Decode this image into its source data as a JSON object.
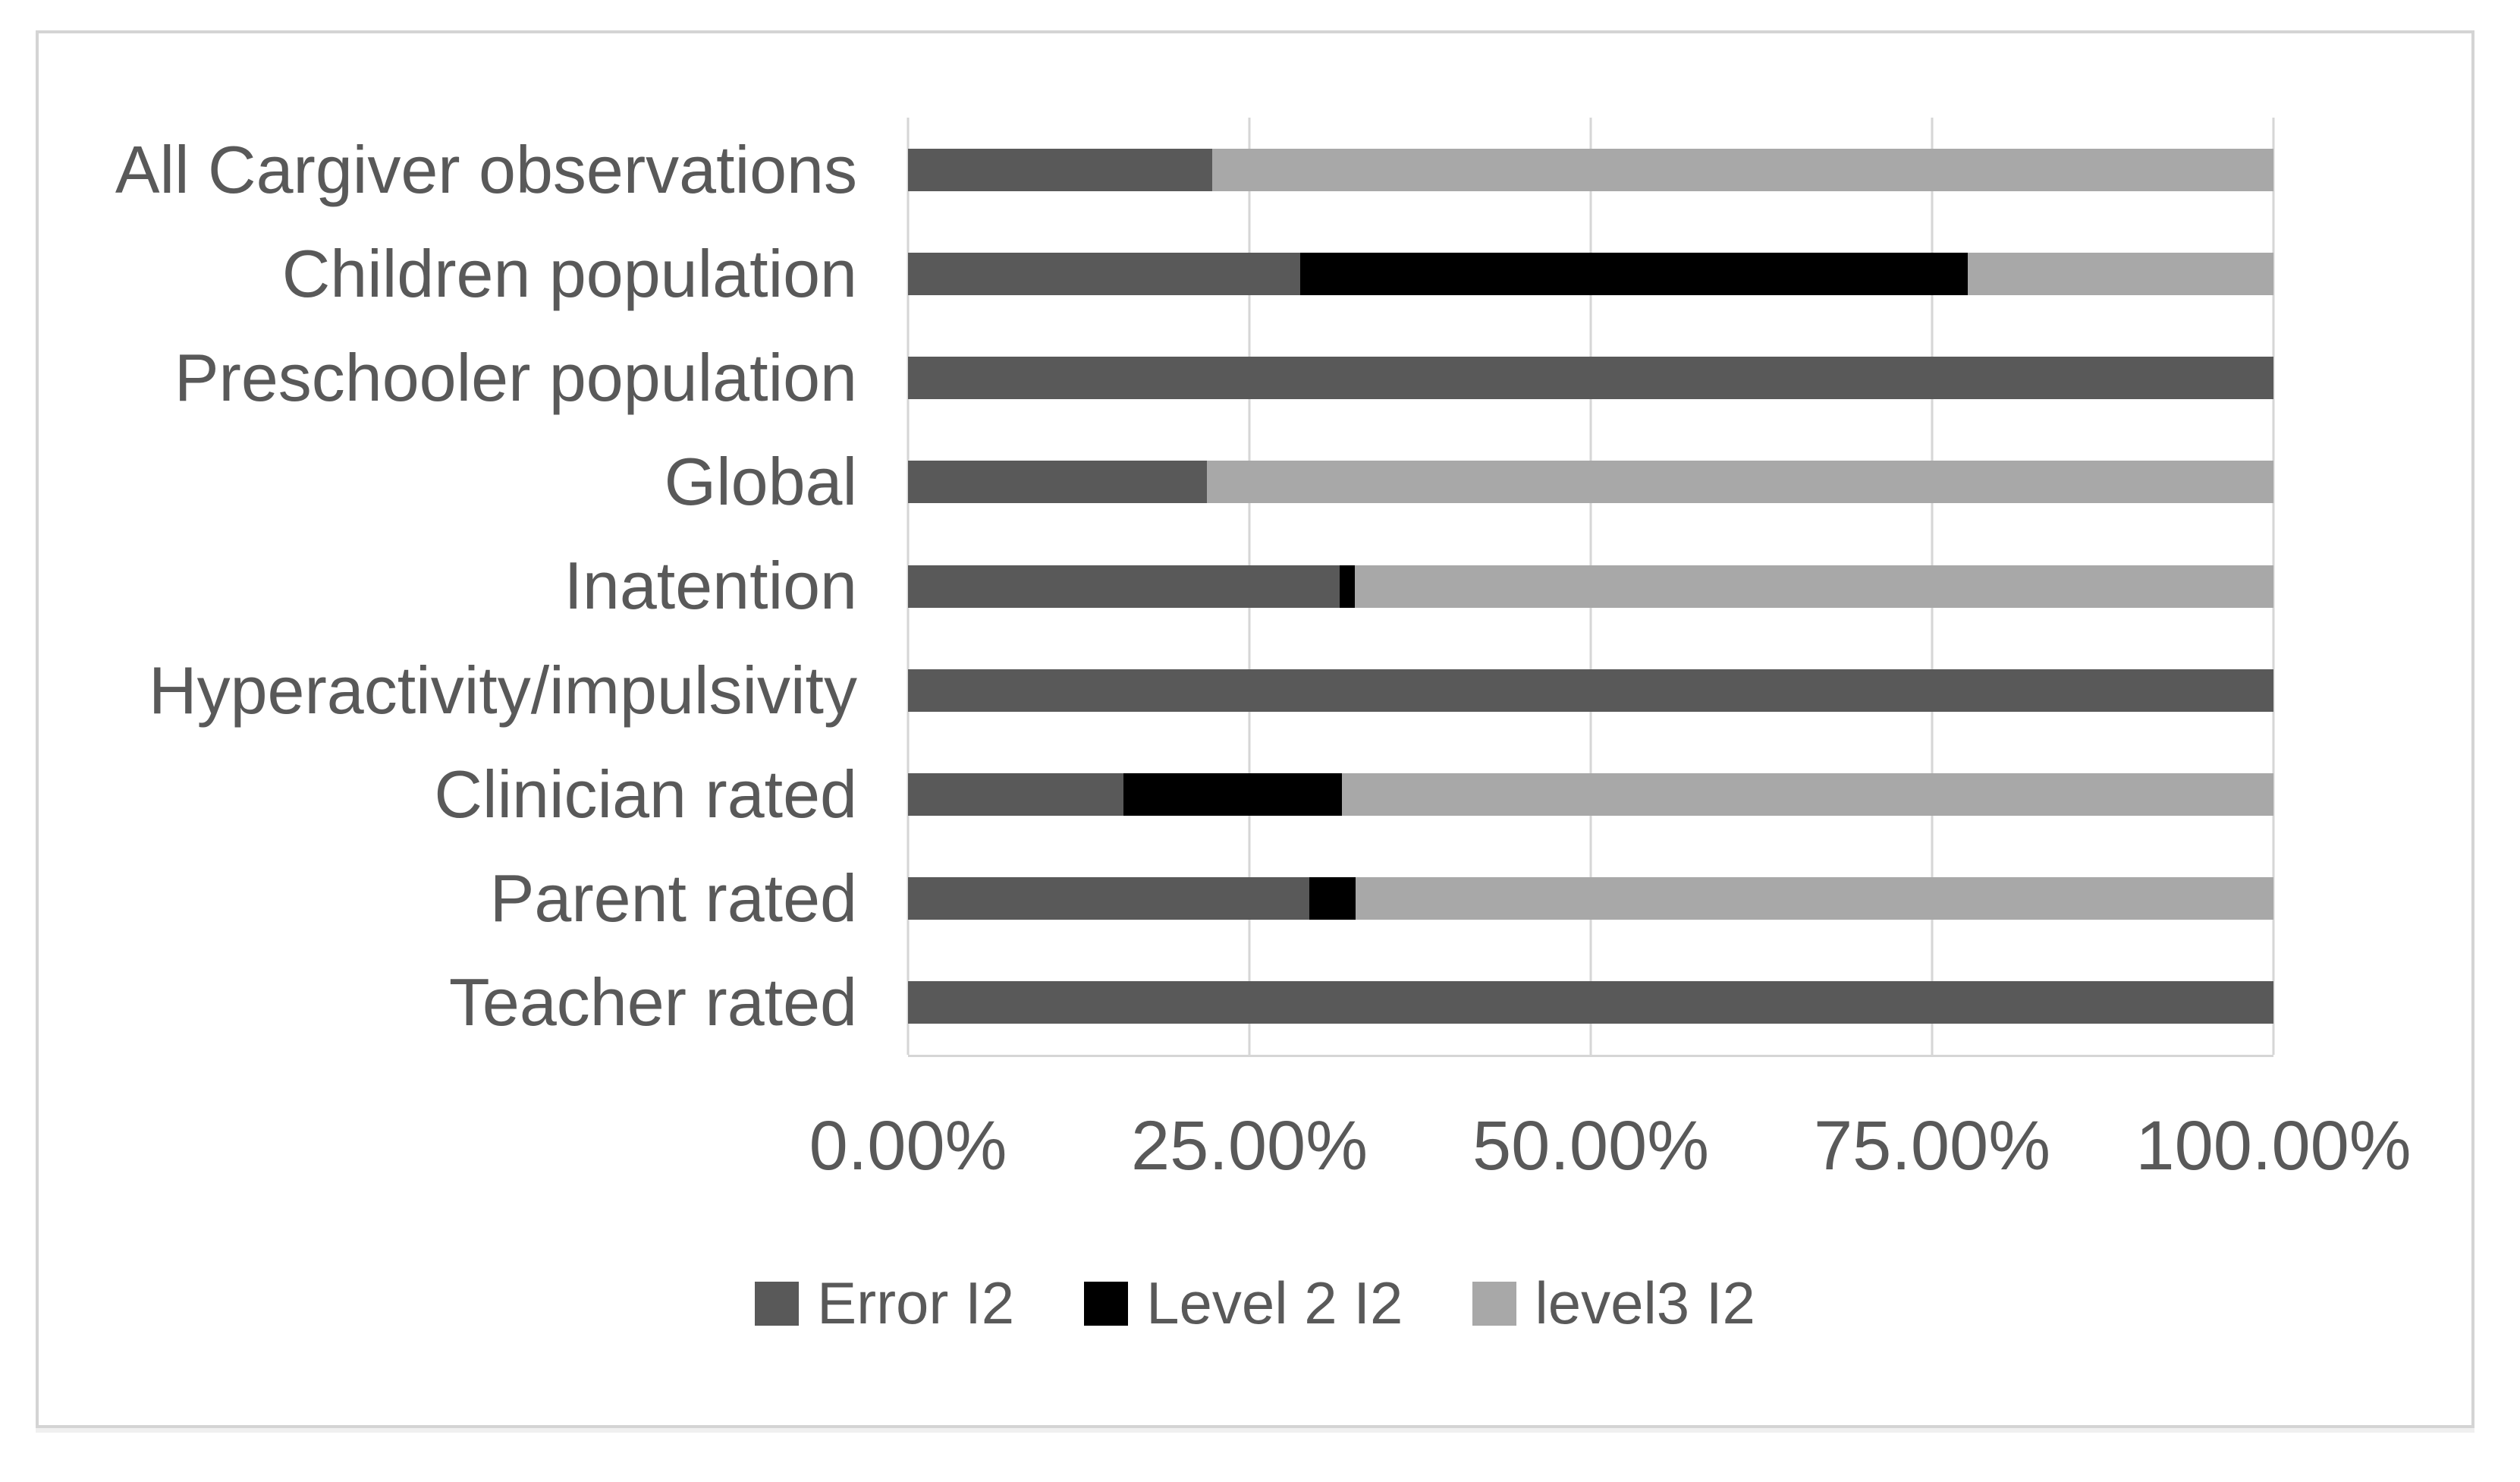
{
  "chart_data": {
    "type": "bar",
    "orientation": "horizontal",
    "stacked": true,
    "title": "",
    "xlabel": "",
    "ylabel": "",
    "grid": true,
    "legend_position": "bottom",
    "x_axis": {
      "min": 0,
      "max": 100,
      "ticks": [
        "0.00%",
        "25.00%",
        "50.00%",
        "75.00%",
        "100.00%"
      ],
      "tick_values": [
        0,
        25,
        50,
        75,
        100
      ]
    },
    "categories": [
      "All Cargiver observations",
      "Children population",
      "Preschooler population",
      "Global",
      "Inatention",
      "Hyperactivity/impulsivity",
      "Clinician rated",
      "Parent rated",
      "Teacher rated"
    ],
    "series": [
      {
        "name": "Error I2",
        "color": "#595959",
        "values": [
          22.3,
          28.7,
          100,
          21.9,
          31.6,
          100,
          15.8,
          29.4,
          100
        ]
      },
      {
        "name": "Level 2 I2",
        "color": "#000000",
        "values": [
          0,
          48.9,
          0,
          0,
          1.1,
          0,
          16.0,
          3.4,
          0
        ]
      },
      {
        "name": "level3 I2",
        "color": "#a8a8a8",
        "values": [
          77.7,
          22.4,
          0,
          78.1,
          67.3,
          0,
          68.2,
          67.2,
          0
        ]
      }
    ]
  },
  "styles": {
    "gridline_color": "#d6d6d6",
    "frame_border_color": "#d4d4d4",
    "text_color": "#595959",
    "background": "#ffffff"
  }
}
